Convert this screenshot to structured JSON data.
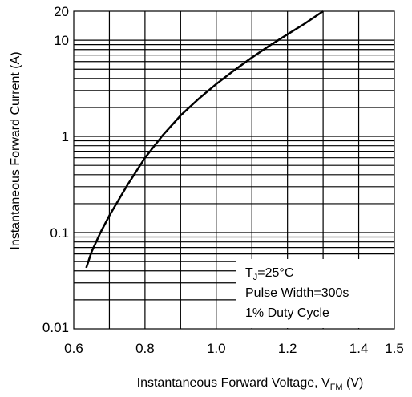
{
  "chart_data": {
    "type": "line",
    "xlabel": "Instantaneous Forward Voltage, V",
    "xlabel_subscript": "FM",
    "xlabel_unit": "(V)",
    "ylabel": "Instantaneous Forward Current (A)",
    "xlim": [
      0.6,
      1.5
    ],
    "ylim": [
      0.01,
      20
    ],
    "y_scale": "log",
    "grid": true,
    "x_ticks": [
      {
        "value": 0.6,
        "label": "0.6"
      },
      {
        "value": 0.8,
        "label": "0.8"
      },
      {
        "value": 1.0,
        "label": "1.0"
      },
      {
        "value": 1.2,
        "label": "1.2"
      },
      {
        "value": 1.4,
        "label": "1.4"
      },
      {
        "value": 1.5,
        "label": "1.5"
      }
    ],
    "y_ticks": [
      {
        "value": 0.01,
        "label": "0.01"
      },
      {
        "value": 0.1,
        "label": "0.1"
      },
      {
        "value": 1,
        "label": "1"
      },
      {
        "value": 10,
        "label": "10"
      },
      {
        "value": 20,
        "label": "20"
      }
    ],
    "series": [
      {
        "color": "#000000",
        "x": [
          0.635,
          0.65,
          0.675,
          0.7,
          0.75,
          0.8,
          0.85,
          0.9,
          0.95,
          1.0,
          1.05,
          1.1,
          1.15,
          1.2,
          1.25,
          1.3
        ],
        "y": [
          0.043,
          0.063,
          0.1,
          0.15,
          0.31,
          0.6,
          1.03,
          1.65,
          2.45,
          3.5,
          4.85,
          6.6,
          8.8,
          11.5,
          15.0,
          20.0
        ]
      }
    ],
    "annotation": {
      "line1_prefix": "T",
      "line1_subscript": "J",
      "line1_suffix": "=25°C",
      "line2": "Pulse Width=300s",
      "line3": "1% Duty Cycle"
    }
  }
}
